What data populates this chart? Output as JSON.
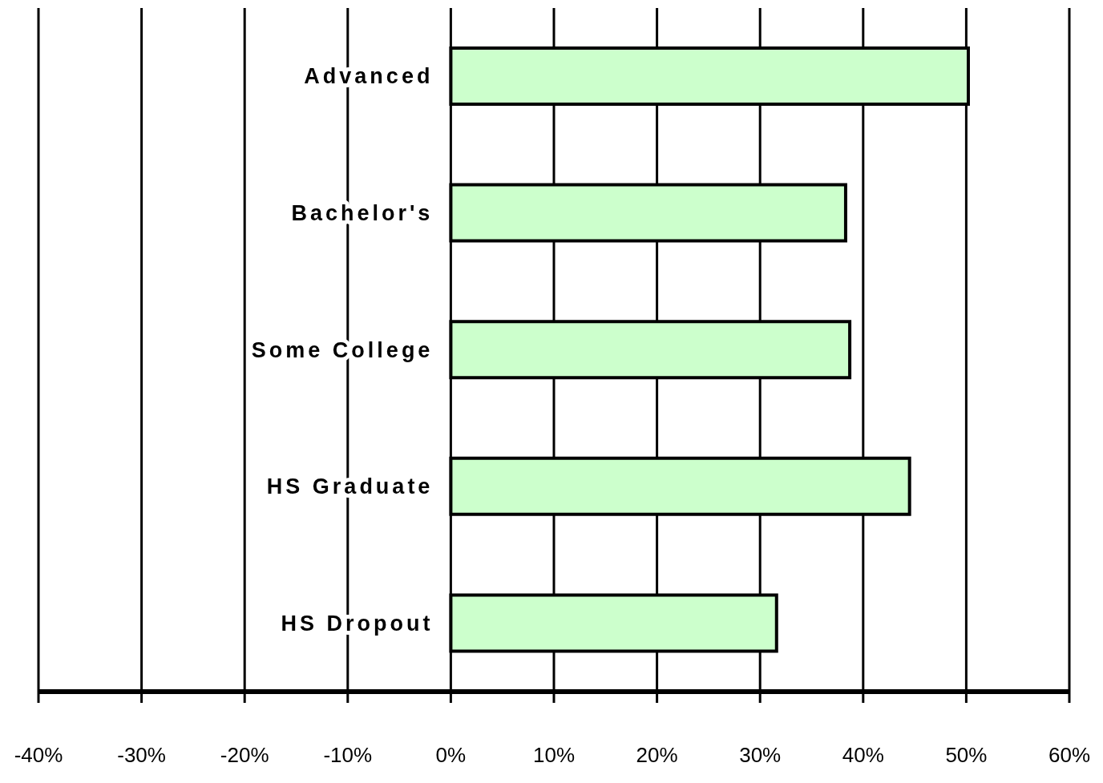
{
  "chart_data": {
    "type": "bar",
    "orientation": "horizontal",
    "categories": [
      "Advanced",
      "Bachelor's",
      "Some College",
      "HS Graduate",
      "HS Dropout"
    ],
    "values": [
      50.2,
      38.3,
      38.7,
      44.5,
      31.6
    ],
    "color": "#ccffcc",
    "xlim": [
      -40,
      60
    ],
    "xticks": [
      {
        "value": -40,
        "label": "-40%"
      },
      {
        "value": -30,
        "label": "-30%"
      },
      {
        "value": -20,
        "label": "-20%"
      },
      {
        "value": -10,
        "label": "-10%"
      },
      {
        "value": 0,
        "label": "0%"
      },
      {
        "value": 10,
        "label": "10%"
      },
      {
        "value": 20,
        "label": "20%"
      },
      {
        "value": 30,
        "label": "30%"
      },
      {
        "value": 40,
        "label": "40%"
      },
      {
        "value": 50,
        "label": "50%"
      },
      {
        "value": 60,
        "label": "60%"
      }
    ],
    "grid": "x",
    "legend": false
  }
}
